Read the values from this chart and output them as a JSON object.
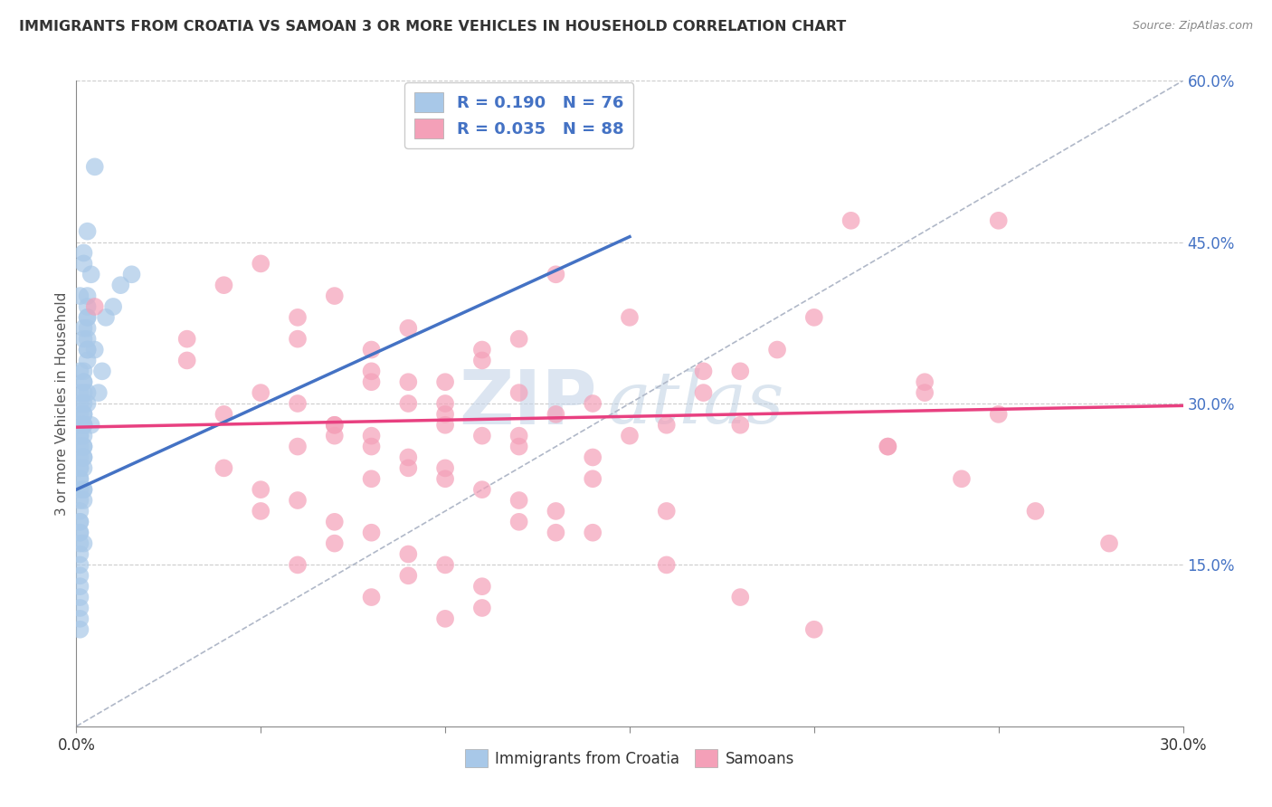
{
  "title": "IMMIGRANTS FROM CROATIA VS SAMOAN 3 OR MORE VEHICLES IN HOUSEHOLD CORRELATION CHART",
  "source_text": "Source: ZipAtlas.com",
  "ylabel": "3 or more Vehicles in Household",
  "xlim": [
    0.0,
    0.3
  ],
  "ylim": [
    0.0,
    0.6
  ],
  "xticks": [
    0.0,
    0.05,
    0.1,
    0.15,
    0.2,
    0.25,
    0.3
  ],
  "xtick_labels": [
    "0.0%",
    "",
    "",
    "",
    "",
    "",
    "30.0%"
  ],
  "yticks": [
    0.15,
    0.3,
    0.45,
    0.6
  ],
  "ytick_labels": [
    "15.0%",
    "30.0%",
    "45.0%",
    "60.0%"
  ],
  "blue_color": "#a8c8e8",
  "pink_color": "#f4a0b8",
  "trend_blue": "#4472C4",
  "trend_pink": "#E84080",
  "R_blue": 0.19,
  "N_blue": 76,
  "R_pink": 0.035,
  "N_pink": 88,
  "legend_label_blue": "Immigrants from Croatia",
  "legend_label_pink": "Samoans",
  "watermark_zip": "ZIP",
  "watermark_atlas": "atlas",
  "blue_scatter_x": [
    0.005,
    0.002,
    0.001,
    0.002,
    0.003,
    0.004,
    0.003,
    0.002,
    0.001,
    0.003,
    0.002,
    0.001,
    0.002,
    0.003,
    0.001,
    0.002,
    0.001,
    0.002,
    0.003,
    0.002,
    0.001,
    0.002,
    0.001,
    0.002,
    0.003,
    0.001,
    0.002,
    0.001,
    0.001,
    0.002,
    0.001,
    0.002,
    0.001,
    0.001,
    0.002,
    0.001,
    0.002,
    0.001,
    0.001,
    0.002,
    0.001,
    0.001,
    0.001,
    0.002,
    0.001,
    0.001,
    0.001,
    0.001,
    0.001,
    0.001,
    0.003,
    0.002,
    0.001,
    0.003,
    0.002,
    0.001,
    0.002,
    0.003,
    0.001,
    0.002,
    0.003,
    0.001,
    0.002,
    0.003,
    0.002,
    0.001,
    0.003,
    0.002,
    0.015,
    0.008,
    0.005,
    0.01,
    0.007,
    0.012,
    0.006,
    0.004
  ],
  "blue_scatter_y": [
    0.52,
    0.43,
    0.4,
    0.44,
    0.46,
    0.42,
    0.38,
    0.36,
    0.33,
    0.35,
    0.37,
    0.31,
    0.32,
    0.39,
    0.3,
    0.28,
    0.27,
    0.29,
    0.31,
    0.26,
    0.25,
    0.28,
    0.24,
    0.27,
    0.3,
    0.23,
    0.25,
    0.22,
    0.21,
    0.24,
    0.2,
    0.22,
    0.19,
    0.23,
    0.26,
    0.18,
    0.21,
    0.17,
    0.19,
    0.22,
    0.16,
    0.18,
    0.15,
    0.17,
    0.14,
    0.13,
    0.12,
    0.11,
    0.1,
    0.09,
    0.34,
    0.33,
    0.29,
    0.36,
    0.32,
    0.28,
    0.31,
    0.35,
    0.27,
    0.3,
    0.38,
    0.26,
    0.29,
    0.4,
    0.28,
    0.24,
    0.37,
    0.25,
    0.42,
    0.38,
    0.35,
    0.39,
    0.33,
    0.41,
    0.31,
    0.28
  ],
  "pink_scatter_x": [
    0.005,
    0.03,
    0.05,
    0.07,
    0.09,
    0.11,
    0.13,
    0.15,
    0.17,
    0.19,
    0.21,
    0.23,
    0.25,
    0.04,
    0.06,
    0.08,
    0.1,
    0.12,
    0.14,
    0.16,
    0.18,
    0.2,
    0.22,
    0.03,
    0.05,
    0.07,
    0.09,
    0.11,
    0.13,
    0.15,
    0.17,
    0.06,
    0.08,
    0.1,
    0.12,
    0.14,
    0.04,
    0.06,
    0.08,
    0.1,
    0.12,
    0.07,
    0.09,
    0.11,
    0.13,
    0.08,
    0.1,
    0.12,
    0.05,
    0.07,
    0.09,
    0.11,
    0.13,
    0.06,
    0.08,
    0.1,
    0.04,
    0.06,
    0.08,
    0.1,
    0.07,
    0.09,
    0.05,
    0.07,
    0.09,
    0.11,
    0.06,
    0.08,
    0.1,
    0.12,
    0.14,
    0.16,
    0.18,
    0.2,
    0.22,
    0.24,
    0.26,
    0.28,
    0.18,
    0.25,
    0.08,
    0.1,
    0.12,
    0.14,
    0.16,
    0.09,
    0.11,
    0.23
  ],
  "pink_scatter_y": [
    0.39,
    0.36,
    0.43,
    0.4,
    0.37,
    0.34,
    0.42,
    0.38,
    0.33,
    0.35,
    0.47,
    0.31,
    0.29,
    0.41,
    0.38,
    0.35,
    0.32,
    0.36,
    0.3,
    0.28,
    0.33,
    0.38,
    0.26,
    0.34,
    0.31,
    0.28,
    0.32,
    0.35,
    0.29,
    0.27,
    0.31,
    0.36,
    0.33,
    0.3,
    0.27,
    0.25,
    0.29,
    0.26,
    0.23,
    0.28,
    0.31,
    0.28,
    0.25,
    0.22,
    0.2,
    0.26,
    0.23,
    0.19,
    0.22,
    0.19,
    0.16,
    0.13,
    0.18,
    0.15,
    0.12,
    0.1,
    0.24,
    0.21,
    0.18,
    0.15,
    0.27,
    0.24,
    0.2,
    0.17,
    0.14,
    0.11,
    0.3,
    0.27,
    0.24,
    0.21,
    0.18,
    0.15,
    0.12,
    0.09,
    0.26,
    0.23,
    0.2,
    0.17,
    0.28,
    0.47,
    0.32,
    0.29,
    0.26,
    0.23,
    0.2,
    0.3,
    0.27,
    0.32
  ]
}
